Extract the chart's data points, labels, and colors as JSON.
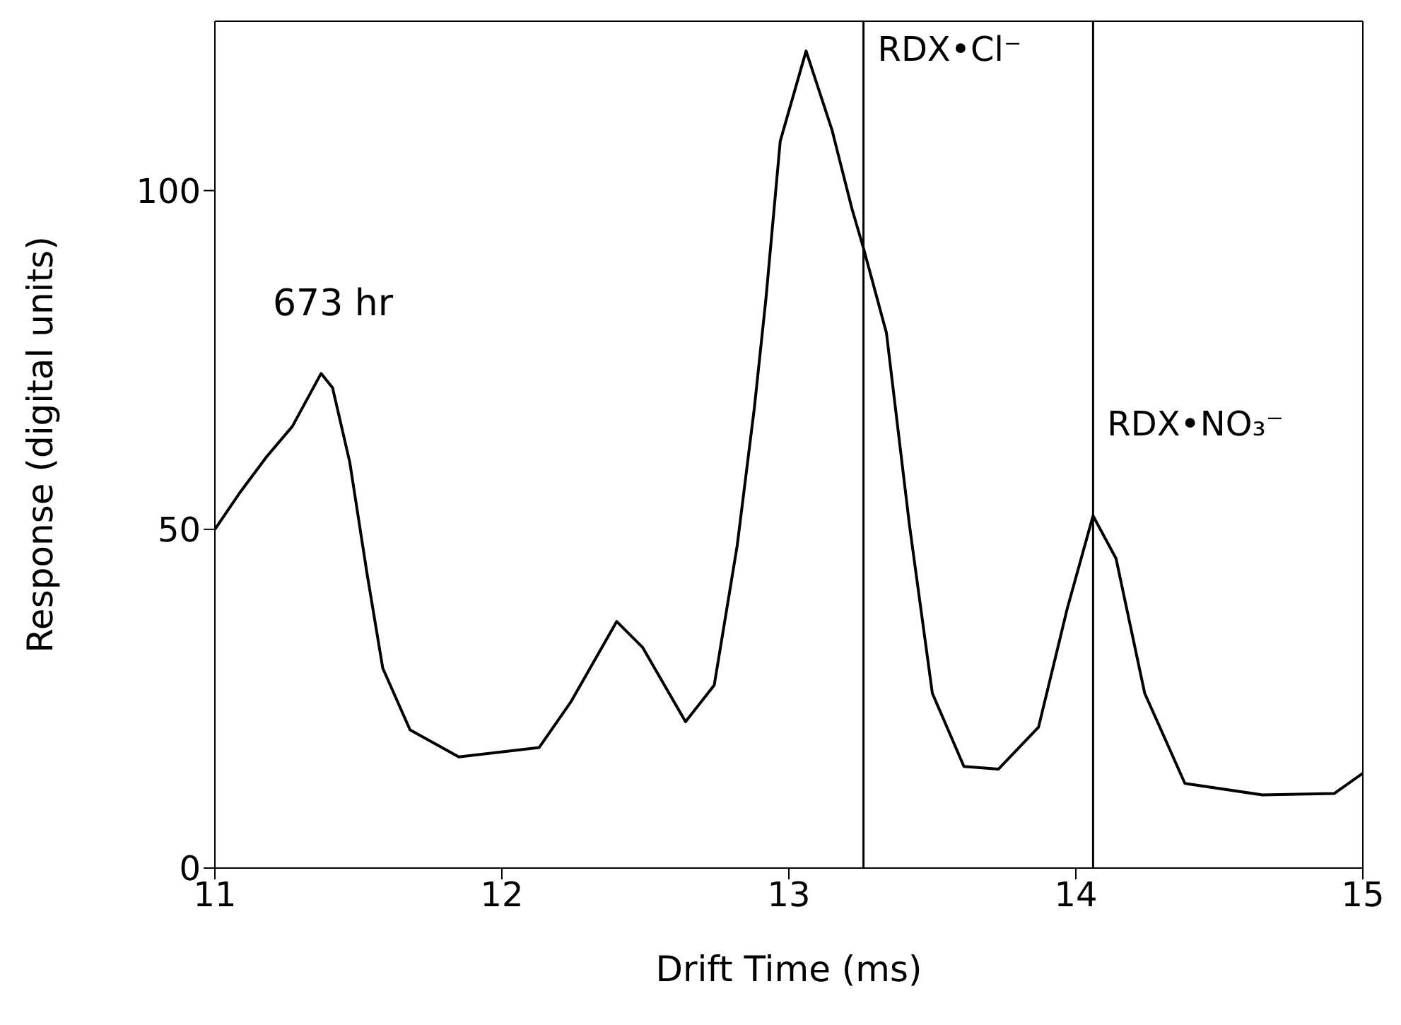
{
  "chart_data": {
    "type": "line",
    "xlabel": "Drift Time (ms)",
    "ylabel": "Response (digital units)",
    "x": [
      11.0,
      11.085,
      11.18,
      11.27,
      11.37,
      11.41,
      11.47,
      11.53,
      11.585,
      11.68,
      11.85,
      12.13,
      12.24,
      12.4,
      12.49,
      12.64,
      12.74,
      12.82,
      12.88,
      12.92,
      12.97,
      13.06,
      13.15,
      13.22,
      13.26,
      13.34,
      13.42,
      13.5,
      13.61,
      13.73,
      13.87,
      13.97,
      14.06,
      14.14,
      14.24,
      14.38,
      14.65,
      14.9,
      15.0
    ],
    "series": [
      {
        "color": "#000000",
        "values": [
          50,
          55.3,
          60.7,
          65.2,
          73,
          70.9,
          59.9,
          43.5,
          29.5,
          20.4,
          16.4,
          17.8,
          24.5,
          36.4,
          32.6,
          21.6,
          27,
          47.6,
          68,
          84,
          107.3,
          120.6,
          109,
          97.3,
          91.5,
          79,
          50.7,
          25.8,
          15,
          14.6,
          20.8,
          38.3,
          52,
          45.7,
          25.8,
          12.5,
          10.8,
          11,
          14
        ]
      }
    ],
    "xlim": [
      11,
      15
    ],
    "xticks": [
      11,
      12,
      13,
      14,
      15
    ],
    "ylim": [
      0,
      125
    ],
    "yticks": [
      0,
      50,
      100
    ],
    "annotations": [
      "673 hr"
    ],
    "ref_lines": [
      {
        "axis": "x",
        "value": 13.26,
        "label": "RDX•Cl⁻"
      },
      {
        "axis": "x",
        "value": 14.06,
        "label": "RDX•NO₃⁻"
      }
    ]
  }
}
